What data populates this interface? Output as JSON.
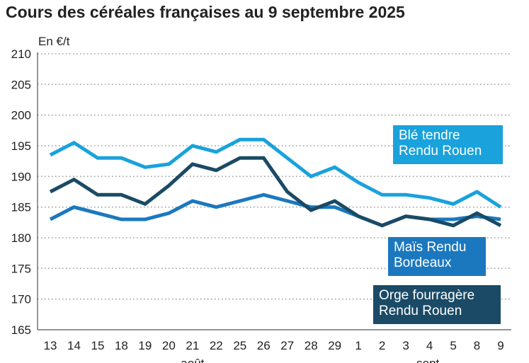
{
  "title": "Cours des céréales françaises au 9 septembre 2025",
  "chart_data": {
    "type": "line",
    "ylabel": "En €/t",
    "ylim": [
      165,
      210
    ],
    "yticks": [
      165,
      170,
      175,
      180,
      185,
      190,
      195,
      200,
      205,
      210
    ],
    "grid": "dotted horizontal",
    "categories": [
      "13",
      "14",
      "15",
      "18",
      "19",
      "20",
      "21",
      "22",
      "25",
      "26",
      "27",
      "28",
      "29",
      "1",
      "2",
      "3",
      "4",
      "5",
      "8",
      "9"
    ],
    "months": [
      {
        "label": "août",
        "from": 0,
        "to": 12
      },
      {
        "label": "sept.",
        "from": 13,
        "to": 19
      }
    ],
    "series": [
      {
        "name": "Blé tendre Rendu Rouen",
        "color": "#19a2dc",
        "values": [
          193.5,
          195.5,
          193,
          193,
          191.5,
          192,
          195,
          194,
          196,
          196,
          193,
          190,
          191.5,
          189,
          187,
          187,
          186.5,
          185.5,
          187.5,
          185
        ]
      },
      {
        "name": "Maïs Rendu Bordeaux",
        "color": "#1b78bf",
        "values": [
          183,
          185,
          184,
          183,
          183,
          184,
          186,
          185,
          186,
          187,
          186,
          185,
          185,
          183.5,
          182,
          183.5,
          183,
          183,
          183.5,
          183
        ]
      },
      {
        "name": "Orge fourragère Rendu Rouen",
        "color": "#1a4a66",
        "values": [
          187.5,
          189.5,
          187,
          187,
          185.5,
          188.5,
          192,
          191,
          193,
          193,
          187.5,
          184.5,
          186,
          183.5,
          182,
          183.5,
          183,
          182,
          184,
          182
        ]
      }
    ],
    "legend": [
      {
        "line1": "Blé tendre",
        "line2": "Rendu Rouen",
        "color": "#19a2dc"
      },
      {
        "line1": "Maïs Rendu",
        "line2": "Bordeaux",
        "color": "#1b78bf"
      },
      {
        "line1": "Orge fourragère",
        "line2": "Rendu Rouen",
        "color": "#1a4a66"
      }
    ]
  }
}
